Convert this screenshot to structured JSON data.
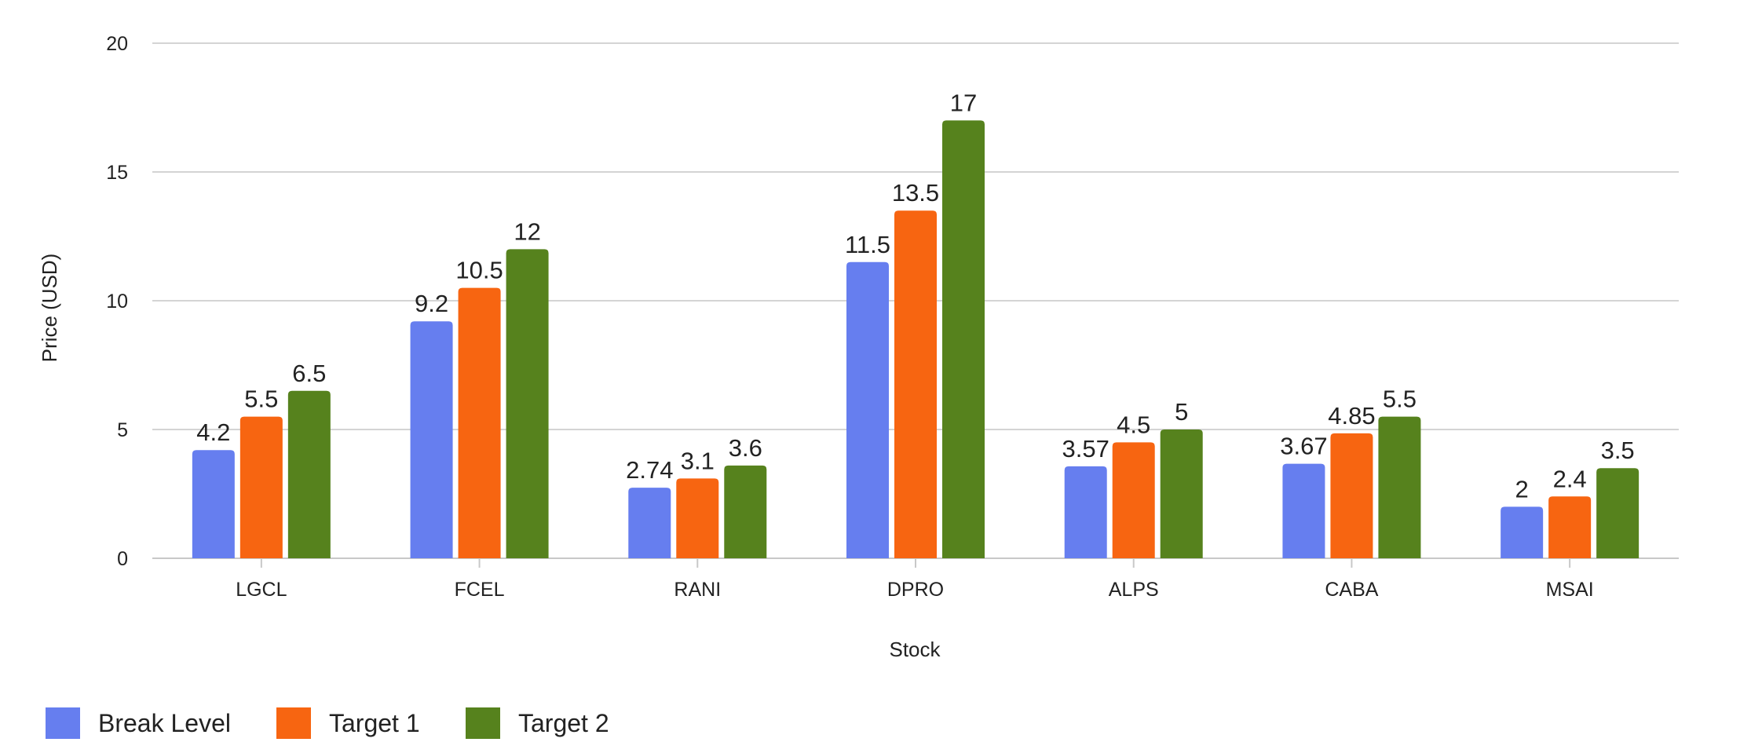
{
  "chart_data": {
    "type": "bar",
    "title": "",
    "xlabel": "Stock",
    "ylabel": "Price (USD)",
    "ylim": [
      0,
      20
    ],
    "yticks": [
      0,
      5,
      10,
      15,
      20
    ],
    "grid": true,
    "legend_position": "bottom-left",
    "categories": [
      "LGCL",
      "FCEL",
      "RANI",
      "DPRO",
      "ALPS",
      "CABA",
      "MSAI"
    ],
    "series": [
      {
        "name": "Break Level",
        "color": "#667eef",
        "values": [
          4.2,
          9.2,
          2.74,
          11.5,
          3.57,
          3.67,
          2
        ]
      },
      {
        "name": "Target 1",
        "color": "#f76511",
        "values": [
          5.5,
          10.5,
          3.1,
          13.5,
          4.5,
          4.85,
          2.4
        ]
      },
      {
        "name": "Target 2",
        "color": "#56821d",
        "values": [
          6.5,
          12,
          3.6,
          17,
          5,
          5.5,
          3.5
        ]
      }
    ]
  }
}
